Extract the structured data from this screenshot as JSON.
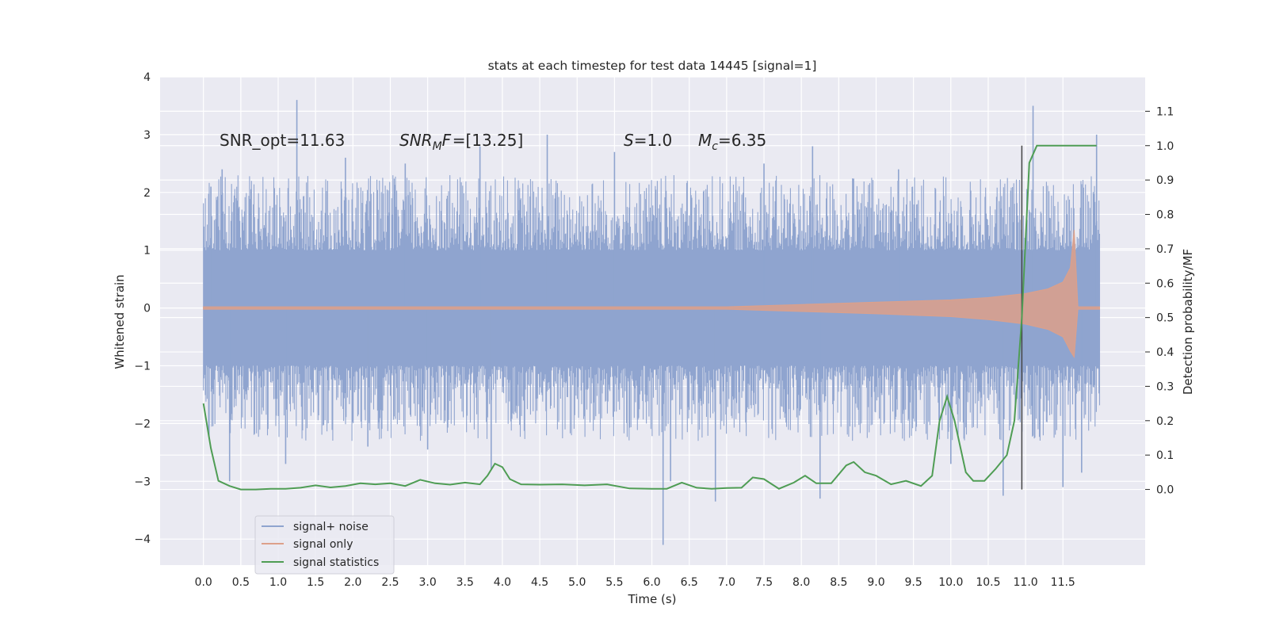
{
  "chart_data": {
    "type": "line",
    "title": "stats at each timestep for test data 14445 [signal=1]",
    "xlabel": "Time (s)",
    "ylabel": "Whitened strain",
    "y2label": "Detection probability/MF",
    "xlim": [
      -0.58,
      12.6
    ],
    "ylim": [
      -4.45,
      4.0
    ],
    "y2lim": [
      -0.22,
      1.2
    ],
    "xticks": [
      0.0,
      0.5,
      1.0,
      1.5,
      2.0,
      2.5,
      3.0,
      3.5,
      4.0,
      4.5,
      5.0,
      5.5,
      6.0,
      6.5,
      7.0,
      7.5,
      8.0,
      8.5,
      9.0,
      9.5,
      10.0,
      10.5,
      11.0,
      11.5
    ],
    "xtick_labels": [
      "0.0",
      "0.5",
      "1.0",
      "1.5",
      "2.0",
      "2.5",
      "3.0",
      "3.5",
      "4.0",
      "4.5",
      "5.0",
      "5.5",
      "6.0",
      "6.5",
      "7.0",
      "7.5",
      "8.0",
      "8.5",
      "9.0",
      "9.5",
      "10.0",
      "10.5",
      "11.0",
      "11.5"
    ],
    "yticks": [
      -4,
      -3,
      -2,
      -1,
      0,
      1,
      2,
      3,
      4
    ],
    "ytick_labels": [
      "−4",
      "−3",
      "−2",
      "−1",
      "0",
      "1",
      "2",
      "3",
      "4"
    ],
    "y2ticks": [
      0.0,
      0.1,
      0.2,
      0.3,
      0.4,
      0.5,
      0.6,
      0.7,
      0.8,
      0.9,
      1.0,
      1.1
    ],
    "y2tick_labels": [
      "0.0",
      "0.1",
      "0.2",
      "0.3",
      "0.4",
      "0.5",
      "0.6",
      "0.7",
      "0.8",
      "0.9",
      "1.0",
      "1.1"
    ],
    "grid": true,
    "legend_position": "lower-left",
    "annotations": {
      "snr_opt": "SNR_opt=11.63",
      "snr_mf_main": "SNR",
      "snr_mf_sub": "M",
      "snr_mf_rest": "F=[13.25]",
      "s_var": "S",
      "s_rest": "=1.0",
      "mc_var": "M",
      "mc_sub": "c",
      "mc_rest": "=6.35"
    },
    "marker_x": 10.95,
    "series": [
      {
        "name": "signal+ noise",
        "color": "#8fa4cf",
        "kind": "noise",
        "x_range": [
          0.0,
          11.99
        ],
        "spikes": [
          {
            "x": 0.1,
            "y": 2.1
          },
          {
            "x": 0.25,
            "y": 2.4
          },
          {
            "x": 0.35,
            "y": -3.0
          },
          {
            "x": 1.25,
            "y": 3.6
          },
          {
            "x": 1.1,
            "y": -2.7
          },
          {
            "x": 1.9,
            "y": 2.6
          },
          {
            "x": 2.2,
            "y": -2.4
          },
          {
            "x": 2.7,
            "y": 2.5
          },
          {
            "x": 3.0,
            "y": -2.45
          },
          {
            "x": 3.7,
            "y": 2.8
          },
          {
            "x": 3.85,
            "y": -2.8
          },
          {
            "x": 4.6,
            "y": 3.0
          },
          {
            "x": 5.5,
            "y": 2.7
          },
          {
            "x": 6.15,
            "y": -4.1
          },
          {
            "x": 6.25,
            "y": -3.0
          },
          {
            "x": 6.85,
            "y": -3.35
          },
          {
            "x": 7.5,
            "y": 2.5
          },
          {
            "x": 8.15,
            "y": 2.8
          },
          {
            "x": 8.25,
            "y": -3.3
          },
          {
            "x": 9.3,
            "y": 2.4
          },
          {
            "x": 10.0,
            "y": -2.7
          },
          {
            "x": 10.7,
            "y": -3.25
          },
          {
            "x": 11.1,
            "y": 3.5
          },
          {
            "x": 11.5,
            "y": -3.1
          },
          {
            "x": 11.75,
            "y": -2.85
          },
          {
            "x": 11.95,
            "y": 3.0
          }
        ]
      },
      {
        "name": "signal only",
        "color": "#dda08a",
        "kind": "chirp",
        "envelope": {
          "x": [
            0.0,
            7.0,
            8.0,
            9.0,
            10.0,
            10.5,
            11.0,
            11.3,
            11.5,
            11.6,
            11.65,
            11.7,
            11.99
          ],
          "upper": [
            0.02,
            0.02,
            0.06,
            0.1,
            0.14,
            0.18,
            0.25,
            0.33,
            0.45,
            0.7,
            1.35,
            0.02,
            0.02
          ],
          "lower": [
            -0.02,
            -0.02,
            -0.06,
            -0.1,
            -0.15,
            -0.2,
            -0.28,
            -0.37,
            -0.5,
            -0.75,
            -0.85,
            -0.02,
            -0.02
          ]
        }
      },
      {
        "name": "signal statistics",
        "color": "#4f9d54",
        "kind": "line",
        "x": [
          0.0,
          0.1,
          0.2,
          0.35,
          0.5,
          0.7,
          0.9,
          1.1,
          1.3,
          1.5,
          1.7,
          1.9,
          2.1,
          2.3,
          2.5,
          2.7,
          2.9,
          3.1,
          3.3,
          3.5,
          3.7,
          3.8,
          3.9,
          4.0,
          4.1,
          4.25,
          4.5,
          4.8,
          5.1,
          5.4,
          5.7,
          6.0,
          6.2,
          6.4,
          6.6,
          6.8,
          7.0,
          7.2,
          7.35,
          7.5,
          7.7,
          7.9,
          8.05,
          8.2,
          8.4,
          8.6,
          8.7,
          8.85,
          9.0,
          9.2,
          9.4,
          9.6,
          9.75,
          9.85,
          9.95,
          10.05,
          10.2,
          10.3,
          10.45,
          10.6,
          10.75,
          10.85,
          10.95,
          11.05,
          11.15,
          11.5,
          11.95
        ],
        "y": [
          0.25,
          0.12,
          0.025,
          0.01,
          0.0,
          0.0,
          0.002,
          0.002,
          0.005,
          0.012,
          0.006,
          0.01,
          0.018,
          0.015,
          0.018,
          0.01,
          0.028,
          0.018,
          0.014,
          0.02,
          0.015,
          0.04,
          0.075,
          0.065,
          0.03,
          0.015,
          0.014,
          0.015,
          0.012,
          0.015,
          0.003,
          0.002,
          0.002,
          0.02,
          0.005,
          0.002,
          0.004,
          0.005,
          0.035,
          0.03,
          0.002,
          0.02,
          0.04,
          0.018,
          0.018,
          0.07,
          0.08,
          0.05,
          0.04,
          0.015,
          0.025,
          0.01,
          0.04,
          0.2,
          0.27,
          0.2,
          0.05,
          0.025,
          0.025,
          0.06,
          0.1,
          0.2,
          0.5,
          0.95,
          1.0,
          1.0,
          1.0
        ]
      }
    ]
  }
}
